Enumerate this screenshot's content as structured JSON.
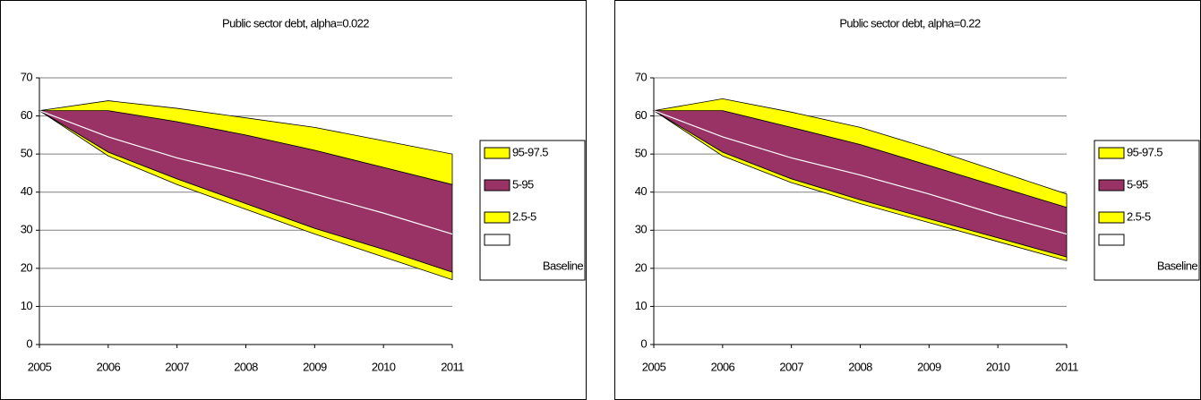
{
  "chart_data": [
    {
      "type": "fan",
      "title": "Public sector debt, alpha=0.022",
      "x": [
        2005,
        2006,
        2007,
        2008,
        2009,
        2010,
        2011
      ],
      "xlim": [
        2005,
        2011
      ],
      "xticks": [
        2005,
        2006,
        2007,
        2008,
        2009,
        2010,
        2011
      ],
      "ylim": [
        0,
        70
      ],
      "yticks": [
        0,
        10,
        20,
        30,
        40,
        50,
        60,
        70
      ],
      "grid": true,
      "base_values": [
        61.4,
        49.5,
        42,
        35.5,
        29,
        23,
        17
      ],
      "series": [
        {
          "name": "95-97.5",
          "color": "#ffff00",
          "values": [
            0,
            2.6,
            3.5,
            4.5,
            6,
            7,
            8
          ]
        },
        {
          "name": "5-95",
          "color": "#993366",
          "values": [
            0,
            10.9,
            15,
            18,
            20.5,
            21.5,
            23
          ]
        },
        {
          "name": "2.5-5",
          "color": "#ffff00",
          "values": [
            0,
            1,
            1.5,
            1.5,
            1.5,
            2,
            2
          ]
        }
      ],
      "baseline": {
        "name": "Baseline",
        "color": "#ffffff",
        "values": [
          61.4,
          54.5,
          49,
          44.5,
          39.5,
          34.5,
          29
        ]
      },
      "legend": "right"
    },
    {
      "type": "fan",
      "title": "Public sector debt, alpha=0.22",
      "x": [
        2005,
        2006,
        2007,
        2008,
        2009,
        2010,
        2011
      ],
      "xlim": [
        2005,
        2011
      ],
      "xticks": [
        2005,
        2006,
        2007,
        2008,
        2009,
        2010,
        2011
      ],
      "ylim": [
        0,
        70
      ],
      "yticks": [
        0,
        10,
        20,
        30,
        40,
        50,
        60,
        70
      ],
      "grid": true,
      "base_values": [
        61.4,
        49.5,
        42.5,
        37,
        32,
        27,
        22
      ],
      "series": [
        {
          "name": "95-97.5",
          "color": "#ffff00",
          "values": [
            0,
            3.1,
            4,
            4.5,
            4.5,
            4,
            3.5
          ]
        },
        {
          "name": "5-95",
          "color": "#993366",
          "values": [
            0,
            10.9,
            13.5,
            14.5,
            14,
            13.5,
            13
          ]
        },
        {
          "name": "2.5-5",
          "color": "#ffff00",
          "values": [
            0,
            1,
            1,
            1,
            1,
            1,
            1
          ]
        }
      ],
      "baseline": {
        "name": "Baseline",
        "color": "#ffffff",
        "values": [
          61.4,
          54.5,
          49,
          44.5,
          39.5,
          34,
          29
        ]
      },
      "legend": "right"
    }
  ]
}
